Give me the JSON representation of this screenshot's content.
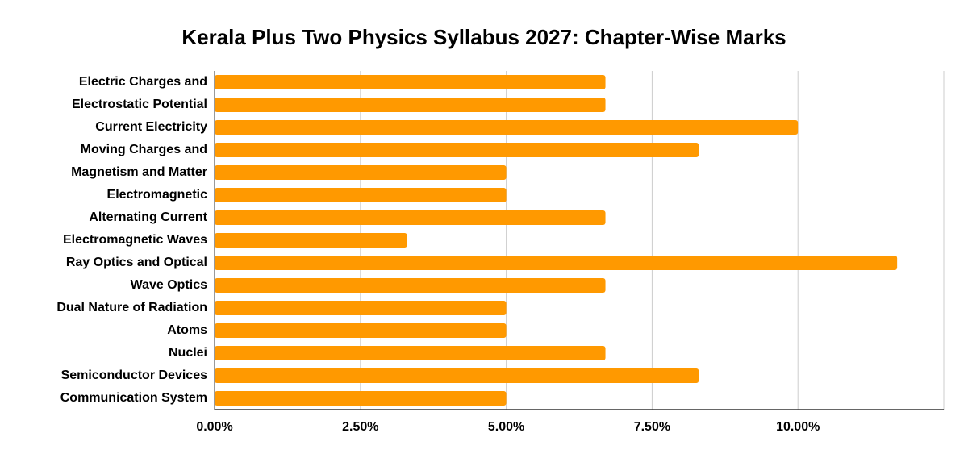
{
  "chart_data": {
    "type": "hbar",
    "title": "Kerala Plus Two Physics Syllabus 2027: Chapter-Wise Marks",
    "categories": [
      "Electric Charges and",
      "Electrostatic Potential",
      "Current Electricity",
      "Moving Charges and",
      "Magnetism and Matter",
      "Electromagnetic",
      "Alternating Current",
      "Electromagnetic Waves",
      "Ray Optics and Optical",
      "Wave Optics",
      "Dual Nature of Radiation",
      "Atoms",
      "Nuclei",
      "Semiconductor Devices",
      "Communication System"
    ],
    "values": [
      6.7,
      6.7,
      10,
      8.3,
      5,
      5,
      6.7,
      3.3,
      11.7,
      6.7,
      5,
      5,
      6.7,
      8.3,
      5
    ],
    "color": "#ff9900",
    "xlim": [
      0,
      12.5
    ],
    "xticks": [
      {
        "value": 0,
        "label": "0.00%"
      },
      {
        "value": 2.5,
        "label": "2.50%"
      },
      {
        "value": 5,
        "label": "5.00%"
      },
      {
        "value": 7.5,
        "label": "7.50%"
      },
      {
        "value": 10,
        "label": "10.00%"
      }
    ],
    "grid": true
  }
}
